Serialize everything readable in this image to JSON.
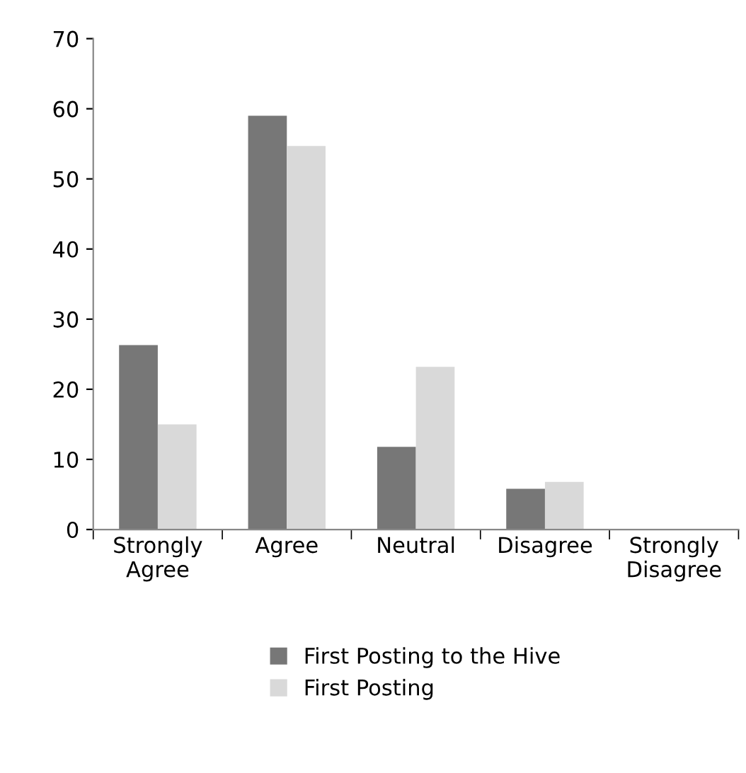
{
  "chart_data": {
    "type": "bar",
    "categories": [
      "Strongly Agree",
      "Agree",
      "Neutral",
      "Disagree",
      "Strongly Disagree"
    ],
    "series": [
      {
        "name": "First Posting to the Hive",
        "color": "#777777",
        "values": [
          26.3,
          59,
          11.8,
          5.8,
          0
        ]
      },
      {
        "name": "First Posting",
        "color": "#d9d9d9",
        "values": [
          15,
          54.7,
          23.2,
          6.8,
          0
        ]
      }
    ],
    "ylim": [
      0,
      70
    ],
    "yticks": [
      0,
      10,
      20,
      30,
      40,
      50,
      60,
      70
    ],
    "grid": false,
    "legend": "bottom"
  }
}
